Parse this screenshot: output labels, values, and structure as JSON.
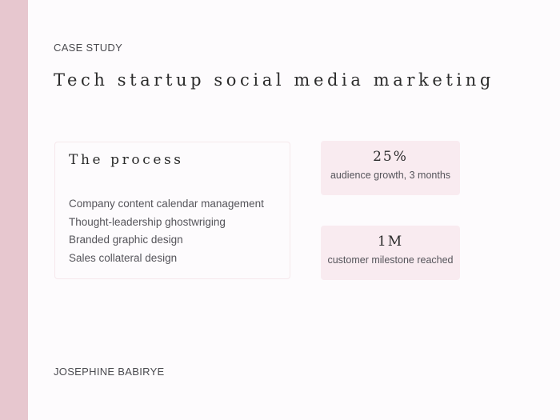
{
  "header": {
    "eyebrow": "CASE STUDY",
    "title": "Tech startup social media marketing"
  },
  "process": {
    "title": "The process",
    "items": [
      "Company content calendar management",
      "Thought-leadership ghostwriging",
      "Branded graphic design",
      "Sales collateral design"
    ]
  },
  "stats": [
    {
      "value": "25%",
      "label": "audience growth, 3 months"
    },
    {
      "value": "1M",
      "label": "customer milestone reached"
    }
  ],
  "footer": {
    "author": "JOSEPHINE BABIRYE"
  },
  "colors": {
    "accent_bar": "#e7c7cf",
    "stat_card_bg": "#f9ebf0",
    "background": "#fdfbfd"
  }
}
